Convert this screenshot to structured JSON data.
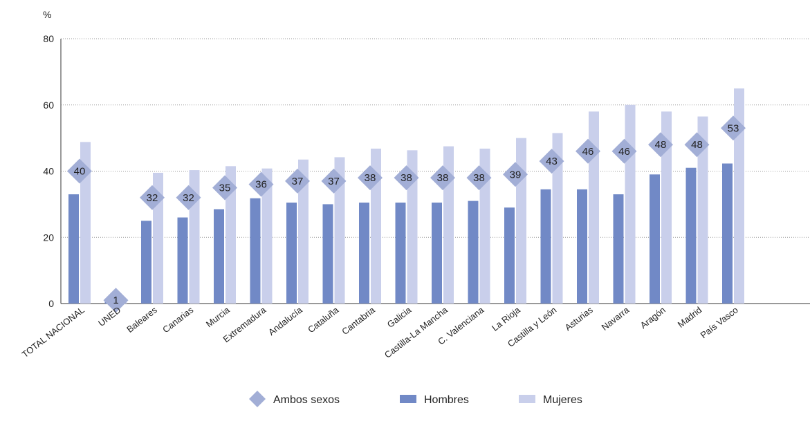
{
  "chart_data": {
    "type": "bar",
    "ylabel": "%",
    "ylim": [
      0,
      80
    ],
    "yticks": [
      0,
      20,
      40,
      60,
      80
    ],
    "grid": true,
    "legend_position": "bottom-center",
    "categories": [
      "TOTAL NACIONAL",
      "UNED",
      "Baleares",
      "Canarias",
      "Murcia",
      "Extremadura",
      "Andalucía",
      "Cataluña",
      "Cantabria",
      "Galicia",
      "Castilla-La Mancha",
      "C. Valenciana",
      "La Rioja",
      "Castilla y León",
      "Asturias",
      "Navarra",
      "Aragón",
      "Madrid",
      "País Vasco"
    ],
    "series": [
      {
        "name": "Hombres",
        "kind": "bar",
        "color": "#7189c6",
        "values": [
          33,
          1,
          25,
          26,
          28.5,
          31.8,
          30.5,
          30,
          30.5,
          30.5,
          30.5,
          31,
          29,
          34.5,
          34.5,
          33,
          39,
          41,
          42.3
        ]
      },
      {
        "name": "Mujeres",
        "kind": "bar",
        "color": "#c9cfeb",
        "values": [
          48.8,
          1,
          39.5,
          40.3,
          41.5,
          40.8,
          43.5,
          44.2,
          46.8,
          46.3,
          47.5,
          46.8,
          50,
          51.5,
          58,
          60,
          58,
          56.5,
          65
        ]
      },
      {
        "name": "Ambos sexos",
        "kind": "marker",
        "color": "#a2aed6",
        "values": [
          40,
          1,
          32,
          32,
          35,
          36,
          37,
          37,
          38,
          38,
          38,
          38,
          39,
          43,
          46,
          46,
          48,
          48,
          53
        ],
        "labels": [
          "40",
          "1",
          "32",
          "32",
          "35",
          "36",
          "37",
          "37",
          "38",
          "38",
          "38",
          "38",
          "39",
          "43",
          "46",
          "46",
          "48",
          "48",
          "53"
        ]
      }
    ]
  }
}
